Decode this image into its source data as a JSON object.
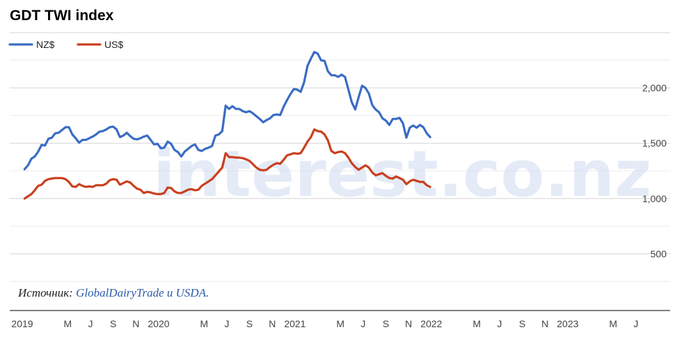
{
  "chart_data": {
    "type": "line",
    "title": "GDT TWI index",
    "xlabel": "",
    "ylabel": "",
    "ylim": [
      250,
      2500
    ],
    "grid": true,
    "legend_position": "top-left",
    "y_ticks": [
      500,
      1000,
      1500,
      2000
    ],
    "y_tick_labels": [
      "500",
      "1,000",
      "1,500",
      "2,000"
    ],
    "x_ticks": [
      {
        "t": 0,
        "label": "2019"
      },
      {
        "t": 4,
        "label": "M"
      },
      {
        "t": 6,
        "label": "J"
      },
      {
        "t": 8,
        "label": "S"
      },
      {
        "t": 10,
        "label": "N"
      },
      {
        "t": 12,
        "label": "2020"
      },
      {
        "t": 16,
        "label": "M"
      },
      {
        "t": 18,
        "label": "J"
      },
      {
        "t": 20,
        "label": "S"
      },
      {
        "t": 22,
        "label": "N"
      },
      {
        "t": 24,
        "label": "2021"
      },
      {
        "t": 28,
        "label": "M"
      },
      {
        "t": 30,
        "label": "J"
      },
      {
        "t": 32,
        "label": "S"
      },
      {
        "t": 34,
        "label": "N"
      },
      {
        "t": 36,
        "label": "2022"
      },
      {
        "t": 40,
        "label": "M"
      },
      {
        "t": 42,
        "label": "J"
      },
      {
        "t": 44,
        "label": "S"
      },
      {
        "t": 46,
        "label": "N"
      },
      {
        "t": 48,
        "label": "2023"
      },
      {
        "t": 52,
        "label": "M"
      },
      {
        "t": 54,
        "label": "J"
      }
    ],
    "series": [
      {
        "name": "NZ$",
        "color": "#3a6cc4",
        "points": [
          [
            0.2,
            1265
          ],
          [
            0.5,
            1300
          ],
          [
            0.8,
            1360
          ],
          [
            1.1,
            1380
          ],
          [
            1.4,
            1425
          ],
          [
            1.7,
            1485
          ],
          [
            2.0,
            1480
          ],
          [
            2.3,
            1540
          ],
          [
            2.6,
            1550
          ],
          [
            2.9,
            1590
          ],
          [
            3.2,
            1595
          ],
          [
            3.5,
            1620
          ],
          [
            3.8,
            1645
          ],
          [
            4.1,
            1645
          ],
          [
            4.4,
            1580
          ],
          [
            4.7,
            1545
          ],
          [
            5.0,
            1505
          ],
          [
            5.3,
            1530
          ],
          [
            5.6,
            1530
          ],
          [
            5.9,
            1545
          ],
          [
            6.2,
            1560
          ],
          [
            6.5,
            1580
          ],
          [
            6.8,
            1605
          ],
          [
            7.1,
            1610
          ],
          [
            7.4,
            1625
          ],
          [
            7.7,
            1645
          ],
          [
            8.0,
            1650
          ],
          [
            8.3,
            1625
          ],
          [
            8.6,
            1555
          ],
          [
            8.9,
            1570
          ],
          [
            9.2,
            1595
          ],
          [
            9.5,
            1565
          ],
          [
            9.8,
            1540
          ],
          [
            10.1,
            1535
          ],
          [
            10.4,
            1545
          ],
          [
            10.7,
            1560
          ],
          [
            11.0,
            1570
          ],
          [
            11.3,
            1530
          ],
          [
            11.6,
            1490
          ],
          [
            11.9,
            1495
          ],
          [
            12.2,
            1455
          ],
          [
            12.5,
            1460
          ],
          [
            12.8,
            1515
          ],
          [
            13.1,
            1495
          ],
          [
            13.4,
            1440
          ],
          [
            13.7,
            1420
          ],
          [
            14.0,
            1380
          ],
          [
            14.3,
            1425
          ],
          [
            14.6,
            1450
          ],
          [
            14.9,
            1475
          ],
          [
            15.2,
            1490
          ],
          [
            15.5,
            1440
          ],
          [
            15.8,
            1430
          ],
          [
            16.1,
            1450
          ],
          [
            16.4,
            1460
          ],
          [
            16.7,
            1475
          ],
          [
            17.0,
            1570
          ],
          [
            17.3,
            1580
          ],
          [
            17.6,
            1610
          ],
          [
            17.9,
            1840
          ],
          [
            18.2,
            1810
          ],
          [
            18.5,
            1835
          ],
          [
            18.8,
            1810
          ],
          [
            19.1,
            1810
          ],
          [
            19.4,
            1790
          ],
          [
            19.7,
            1780
          ],
          [
            20.0,
            1790
          ],
          [
            20.3,
            1770
          ],
          [
            20.6,
            1745
          ],
          [
            20.9,
            1720
          ],
          [
            21.2,
            1690
          ],
          [
            21.5,
            1710
          ],
          [
            21.8,
            1725
          ],
          [
            22.1,
            1755
          ],
          [
            22.4,
            1760
          ],
          [
            22.7,
            1755
          ],
          [
            23.0,
            1830
          ],
          [
            23.3,
            1890
          ],
          [
            23.6,
            1945
          ],
          [
            23.9,
            1990
          ],
          [
            24.2,
            1985
          ],
          [
            24.5,
            1965
          ],
          [
            24.8,
            2050
          ],
          [
            25.1,
            2200
          ],
          [
            25.4,
            2265
          ],
          [
            25.7,
            2325
          ],
          [
            26.0,
            2310
          ],
          [
            26.3,
            2250
          ],
          [
            26.6,
            2245
          ],
          [
            26.9,
            2150
          ],
          [
            27.2,
            2115
          ],
          [
            27.5,
            2115
          ],
          [
            27.8,
            2100
          ],
          [
            28.1,
            2120
          ],
          [
            28.4,
            2100
          ],
          [
            28.7,
            1985
          ],
          [
            29.0,
            1870
          ],
          [
            29.3,
            1805
          ],
          [
            29.6,
            1915
          ],
          [
            29.9,
            2020
          ],
          [
            30.2,
            2000
          ],
          [
            30.5,
            1950
          ],
          [
            30.8,
            1845
          ],
          [
            31.1,
            1805
          ],
          [
            31.4,
            1780
          ],
          [
            31.7,
            1725
          ],
          [
            32.0,
            1705
          ],
          [
            32.3,
            1665
          ],
          [
            32.6,
            1720
          ],
          [
            32.9,
            1720
          ],
          [
            33.2,
            1730
          ],
          [
            33.5,
            1680
          ],
          [
            33.8,
            1550
          ],
          [
            34.1,
            1640
          ],
          [
            34.4,
            1660
          ],
          [
            34.7,
            1640
          ],
          [
            35.0,
            1665
          ],
          [
            35.3,
            1645
          ],
          [
            35.6,
            1590
          ],
          [
            35.9,
            1555
          ]
        ]
      },
      {
        "name": "US$",
        "color": "#c9401f",
        "points": [
          [
            0.2,
            1000
          ],
          [
            0.5,
            1020
          ],
          [
            0.8,
            1040
          ],
          [
            1.1,
            1075
          ],
          [
            1.4,
            1115
          ],
          [
            1.7,
            1125
          ],
          [
            2.0,
            1160
          ],
          [
            2.3,
            1175
          ],
          [
            2.6,
            1180
          ],
          [
            2.9,
            1185
          ],
          [
            3.2,
            1185
          ],
          [
            3.5,
            1185
          ],
          [
            3.8,
            1175
          ],
          [
            4.1,
            1150
          ],
          [
            4.4,
            1110
          ],
          [
            4.7,
            1105
          ],
          [
            5.0,
            1130
          ],
          [
            5.3,
            1115
          ],
          [
            5.6,
            1105
          ],
          [
            5.9,
            1110
          ],
          [
            6.2,
            1105
          ],
          [
            6.5,
            1120
          ],
          [
            6.8,
            1120
          ],
          [
            7.1,
            1120
          ],
          [
            7.4,
            1135
          ],
          [
            7.7,
            1165
          ],
          [
            8.0,
            1175
          ],
          [
            8.3,
            1170
          ],
          [
            8.6,
            1125
          ],
          [
            8.9,
            1140
          ],
          [
            9.2,
            1155
          ],
          [
            9.5,
            1145
          ],
          [
            9.8,
            1115
          ],
          [
            10.1,
            1090
          ],
          [
            10.4,
            1080
          ],
          [
            10.7,
            1050
          ],
          [
            11.0,
            1060
          ],
          [
            11.3,
            1055
          ],
          [
            11.6,
            1045
          ],
          [
            11.9,
            1040
          ],
          [
            12.2,
            1040
          ],
          [
            12.5,
            1050
          ],
          [
            12.8,
            1100
          ],
          [
            13.1,
            1095
          ],
          [
            13.4,
            1065
          ],
          [
            13.7,
            1050
          ],
          [
            14.0,
            1050
          ],
          [
            14.3,
            1065
          ],
          [
            14.6,
            1080
          ],
          [
            14.9,
            1085
          ],
          [
            15.2,
            1075
          ],
          [
            15.5,
            1080
          ],
          [
            15.8,
            1115
          ],
          [
            16.1,
            1135
          ],
          [
            16.4,
            1155
          ],
          [
            16.7,
            1175
          ],
          [
            17.0,
            1210
          ],
          [
            17.3,
            1245
          ],
          [
            17.6,
            1280
          ],
          [
            17.9,
            1410
          ],
          [
            18.2,
            1375
          ],
          [
            18.5,
            1375
          ],
          [
            18.8,
            1370
          ],
          [
            19.1,
            1370
          ],
          [
            19.4,
            1365
          ],
          [
            19.7,
            1355
          ],
          [
            20.0,
            1340
          ],
          [
            20.3,
            1310
          ],
          [
            20.6,
            1280
          ],
          [
            20.9,
            1260
          ],
          [
            21.2,
            1255
          ],
          [
            21.5,
            1260
          ],
          [
            21.8,
            1285
          ],
          [
            22.1,
            1305
          ],
          [
            22.4,
            1320
          ],
          [
            22.7,
            1315
          ],
          [
            23.0,
            1350
          ],
          [
            23.3,
            1390
          ],
          [
            23.6,
            1400
          ],
          [
            23.9,
            1410
          ],
          [
            24.2,
            1405
          ],
          [
            24.5,
            1410
          ],
          [
            24.8,
            1460
          ],
          [
            25.1,
            1515
          ],
          [
            25.4,
            1555
          ],
          [
            25.7,
            1625
          ],
          [
            26.0,
            1610
          ],
          [
            26.3,
            1605
          ],
          [
            26.6,
            1580
          ],
          [
            26.9,
            1525
          ],
          [
            27.2,
            1430
          ],
          [
            27.5,
            1410
          ],
          [
            27.8,
            1420
          ],
          [
            28.1,
            1425
          ],
          [
            28.4,
            1410
          ],
          [
            28.7,
            1370
          ],
          [
            29.0,
            1320
          ],
          [
            29.3,
            1285
          ],
          [
            29.6,
            1260
          ],
          [
            29.9,
            1280
          ],
          [
            30.2,
            1300
          ],
          [
            30.5,
            1280
          ],
          [
            30.8,
            1235
          ],
          [
            31.1,
            1210
          ],
          [
            31.4,
            1220
          ],
          [
            31.7,
            1230
          ],
          [
            32.0,
            1205
          ],
          [
            32.3,
            1185
          ],
          [
            32.6,
            1180
          ],
          [
            32.9,
            1200
          ],
          [
            33.2,
            1185
          ],
          [
            33.5,
            1170
          ],
          [
            33.8,
            1130
          ],
          [
            34.1,
            1155
          ],
          [
            34.4,
            1170
          ],
          [
            34.7,
            1160
          ],
          [
            35.0,
            1150
          ],
          [
            35.3,
            1150
          ],
          [
            35.6,
            1120
          ],
          [
            35.9,
            1105
          ]
        ]
      }
    ]
  },
  "source": {
    "label": "Источник: ",
    "link_text": "GlobalDairyTrade и USDA."
  },
  "watermark": "interest.co.nz"
}
